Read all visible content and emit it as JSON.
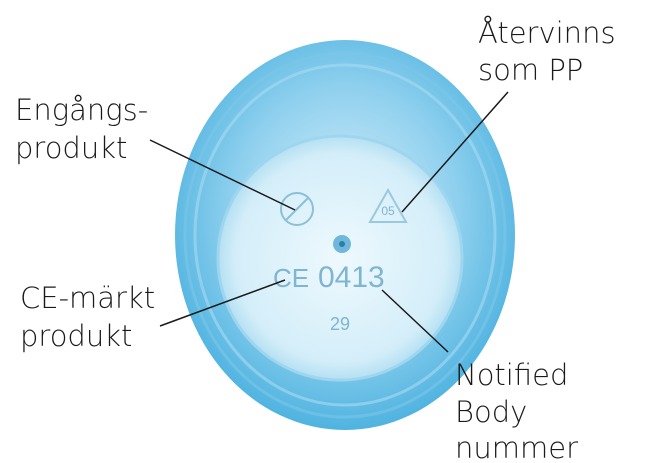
{
  "labels": {
    "recycling": [
      "Återvinns",
      "som PP"
    ],
    "single_use": [
      "Engångs-",
      "produkt"
    ],
    "ce": [
      "CE-märkt",
      "produkt"
    ],
    "notified_body": [
      "Notified",
      "Body",
      "nummer"
    ]
  },
  "cup_markings": {
    "recycling_code": "05",
    "ce_mark": "CE",
    "notified_body_number": "0413",
    "mold_number": "29"
  }
}
